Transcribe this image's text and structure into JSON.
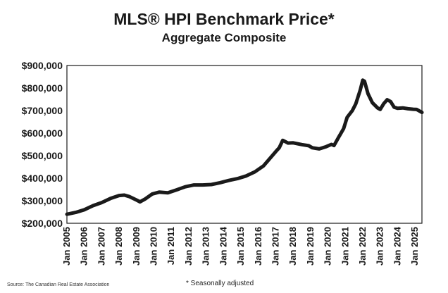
{
  "chart_data": {
    "type": "line",
    "title": "MLS® HPI Benchmark Price*",
    "subtitle": "Aggregate Composite",
    "xlabel": "",
    "ylabel": "",
    "ylim": [
      200000,
      900000
    ],
    "xlim": [
      2005.0,
      2025.4
    ],
    "yticks": [
      "$900,000",
      "$800,000",
      "$700,000",
      "$600,000",
      "$500,000",
      "$400,000",
      "$300,000",
      "$200,000"
    ],
    "ytick_values": [
      900000,
      800000,
      700000,
      600000,
      500000,
      400000,
      300000,
      200000
    ],
    "xticks": [
      "Jan 2005",
      "Jan 2006",
      "Jan 2007",
      "Jan 2008",
      "Jan 2009",
      "Jan 2010",
      "Jan 2011",
      "Jan 2012",
      "Jan 2013",
      "Jan 2014",
      "Jan 2015",
      "Jan 2016",
      "Jan 2017",
      "Jan 2018",
      "Jan 2019",
      "Jan 2020",
      "Jan 2021",
      "Jan 2022",
      "Jan 2023",
      "Jan 2024",
      "Jan 2025"
    ],
    "xtick_values": [
      2005,
      2006,
      2007,
      2008,
      2009,
      2010,
      2011,
      2012,
      2013,
      2014,
      2015,
      2016,
      2017,
      2018,
      2019,
      2020,
      2021,
      2022,
      2023,
      2024,
      2025
    ],
    "grid": false,
    "series": [
      {
        "color": "#1a1a1a",
        "x": [
          2005.0,
          2005.5,
          2006.0,
          2006.5,
          2007.0,
          2007.5,
          2008.0,
          2008.3,
          2008.6,
          2009.0,
          2009.2,
          2009.5,
          2009.9,
          2010.3,
          2010.8,
          2011.3,
          2011.8,
          2012.3,
          2012.8,
          2013.3,
          2013.8,
          2014.3,
          2014.8,
          2015.3,
          2015.8,
          2016.3,
          2016.6,
          2017.0,
          2017.2,
          2017.4,
          2017.7,
          2018.0,
          2018.5,
          2018.9,
          2019.1,
          2019.5,
          2019.9,
          2020.2,
          2020.35,
          2020.6,
          2020.9,
          2021.1,
          2021.4,
          2021.6,
          2021.85,
          2022.0,
          2022.1,
          2022.3,
          2022.55,
          2022.85,
          2023.0,
          2023.2,
          2023.4,
          2023.6,
          2023.8,
          2024.0,
          2024.3,
          2024.6,
          2024.9,
          2025.1,
          2025.4
        ],
        "y": [
          240000,
          248000,
          260000,
          278000,
          292000,
          310000,
          323000,
          325000,
          318000,
          303000,
          295000,
          308000,
          330000,
          338000,
          335000,
          348000,
          362000,
          370000,
          370000,
          372000,
          380000,
          390000,
          398000,
          410000,
          428000,
          455000,
          482000,
          518000,
          535000,
          568000,
          556000,
          557000,
          549000,
          544000,
          535000,
          530000,
          540000,
          550000,
          545000,
          580000,
          620000,
          670000,
          700000,
          730000,
          790000,
          835000,
          830000,
          775000,
          735000,
          712000,
          705000,
          730000,
          748000,
          740000,
          715000,
          710000,
          712000,
          708000,
          706000,
          705000,
          692000
        ]
      }
    ]
  },
  "footer": {
    "source": "Source: The Canadian Real Estate Association",
    "note": "* Seasonally adjusted"
  }
}
